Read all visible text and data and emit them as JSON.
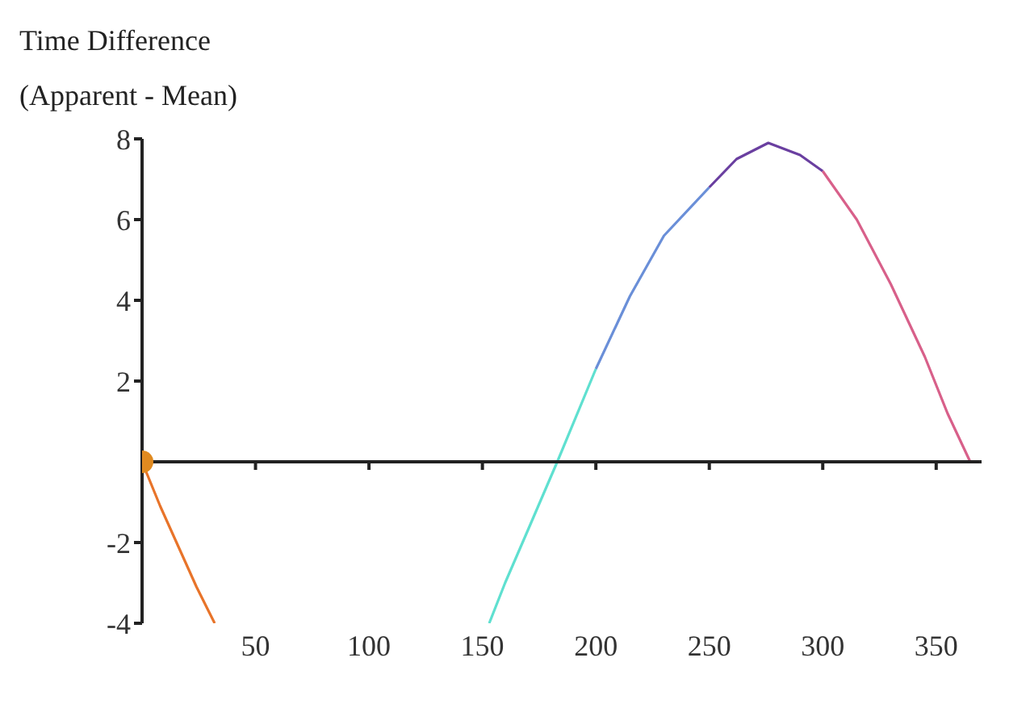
{
  "chart_data": {
    "type": "line",
    "ylabel": "Time Difference (Apparent - Mean)",
    "xlim": [
      0,
      370
    ],
    "xticks": [
      50,
      100,
      150,
      200,
      250,
      300,
      350
    ],
    "ylim": [
      -4,
      8
    ],
    "yticks": [
      -4,
      -2,
      2,
      4,
      6,
      8
    ],
    "grid": false,
    "marker": "none",
    "line_style": "solid",
    "series": [
      {
        "color": "#e8742a",
        "x": [
          0,
          8,
          16,
          24,
          32
        ],
        "values": [
          0,
          -1.1,
          -2.1,
          -3.1,
          -4
        ]
      },
      {
        "color": "#5fe0d0",
        "x": [
          153,
          160,
          170,
          183,
          200
        ],
        "values": [
          -4,
          -3,
          -1.7,
          0,
          2.3
        ]
      },
      {
        "color": "#6a8fd8",
        "x": [
          200,
          215,
          230,
          250
        ],
        "values": [
          2.3,
          4.1,
          5.6,
          6.8
        ]
      },
      {
        "color": "#6a3fa0",
        "x": [
          250,
          262,
          276,
          290,
          300
        ],
        "values": [
          6.8,
          7.5,
          7.9,
          7.6,
          7.2
        ]
      },
      {
        "color": "#d8608a",
        "x": [
          300,
          315,
          330,
          345,
          355,
          365
        ],
        "values": [
          7.2,
          6,
          4.4,
          2.6,
          1.2,
          0
        ]
      },
      {
        "type": "scatter",
        "color": "#e08a20",
        "marker": "circle",
        "x": [
          0
        ],
        "values": [
          0
        ]
      }
    ]
  }
}
